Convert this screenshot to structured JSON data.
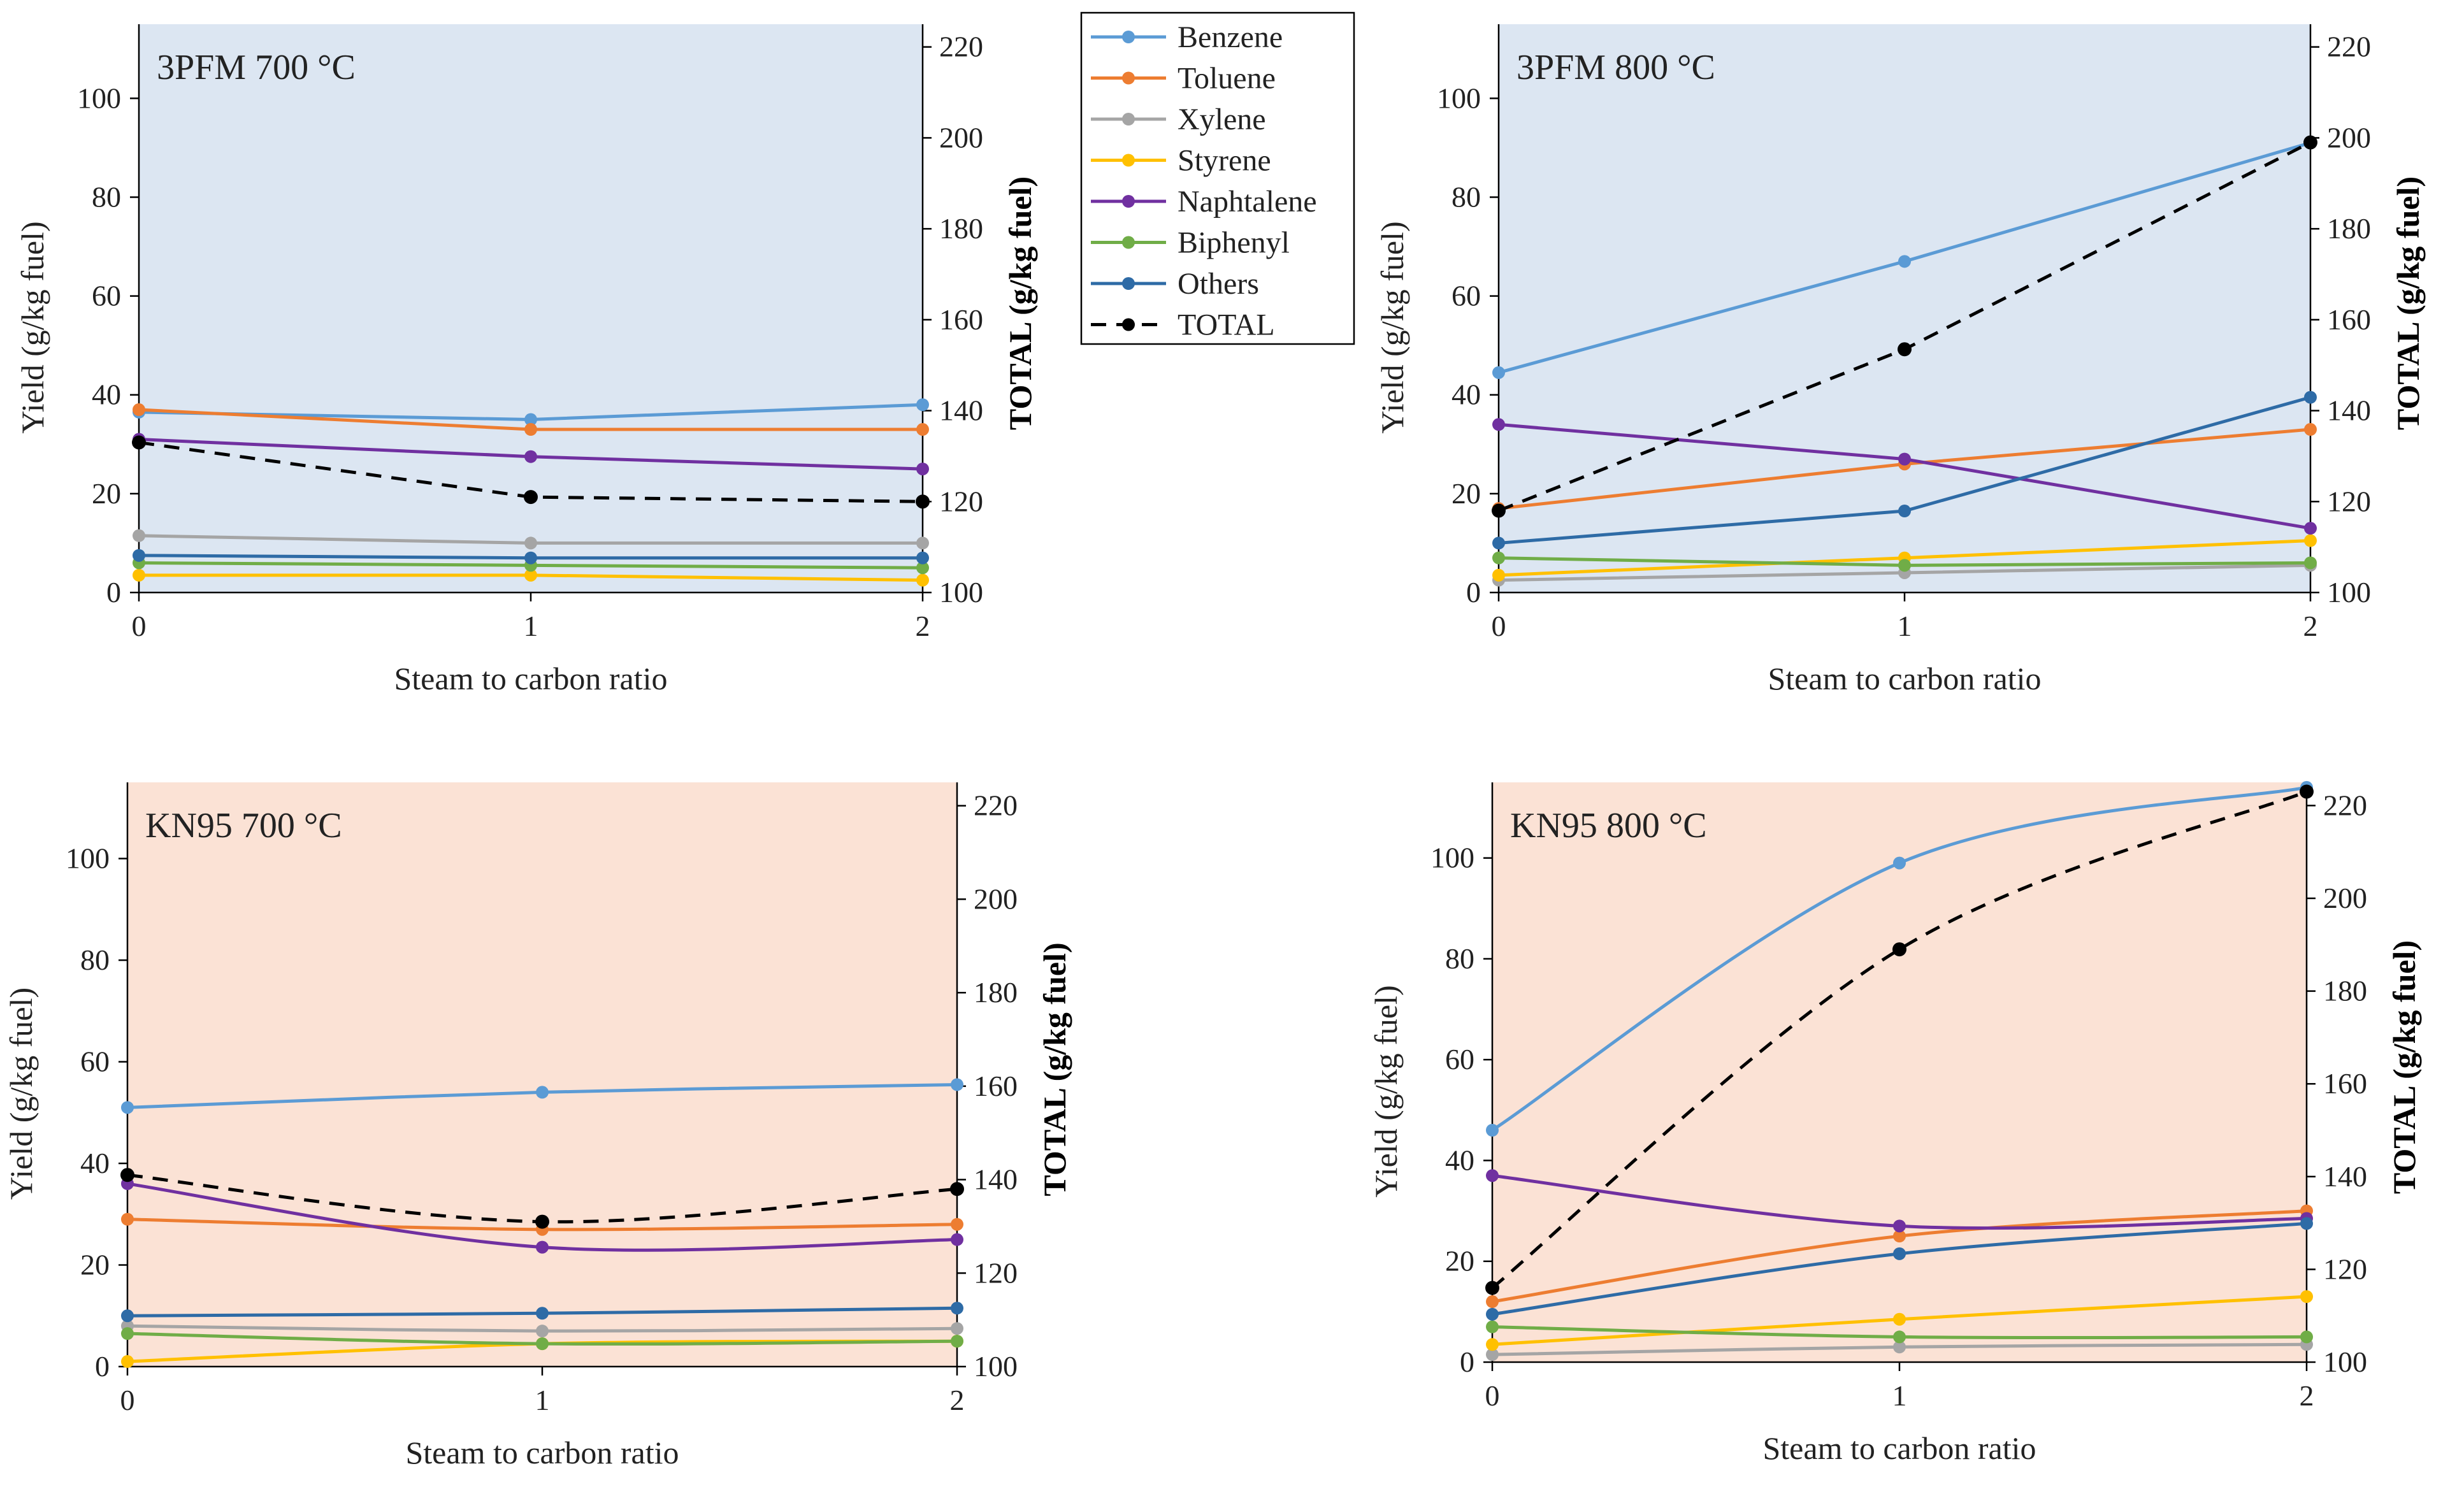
{
  "legend": {
    "entries": [
      {
        "name": "Benzene",
        "color": "#5B9BD5",
        "style": "solid"
      },
      {
        "name": "Toluene",
        "color": "#ED7D31",
        "style": "solid"
      },
      {
        "name": "Xylene",
        "color": "#A5A5A5",
        "style": "solid"
      },
      {
        "name": "Styrene",
        "color": "#FFC000",
        "style": "solid"
      },
      {
        "name": "Naphtalene",
        "color": "#7030A0",
        "style": "solid"
      },
      {
        "name": "Biphenyl",
        "color": "#70AD47",
        "style": "solid"
      },
      {
        "name": "Others",
        "color": "#2E6BA6",
        "style": "solid"
      },
      {
        "name": "TOTAL",
        "color": "#000000",
        "style": "dashed"
      }
    ]
  },
  "chart_data": [
    {
      "type": "line",
      "title": "3PFM 700 °C",
      "background": "#DCE6F2",
      "xlabel": "Steam to carbon ratio",
      "ylabel": "Yield (g/kg fuel)",
      "y2label": "TOTAL  (g/kg fuel)",
      "x": [
        0,
        1,
        2
      ],
      "x_ticks": [
        "0",
        "1",
        "2"
      ],
      "ylim": [
        0,
        115
      ],
      "y_ticks": [
        "0",
        "20",
        "40",
        "60",
        "80",
        "100"
      ],
      "y2lim": [
        100,
        225
      ],
      "y2_ticks": [
        "100",
        "120",
        "140",
        "160",
        "180",
        "200",
        "220"
      ],
      "smooth": false,
      "series": [
        {
          "name": "Benzene",
          "values": [
            36.5,
            35,
            38
          ]
        },
        {
          "name": "Toluene",
          "values": [
            37,
            33,
            33
          ]
        },
        {
          "name": "Xylene",
          "values": [
            11.5,
            10,
            10
          ]
        },
        {
          "name": "Styrene",
          "values": [
            3.5,
            3.5,
            2.5
          ]
        },
        {
          "name": "Naphtalene",
          "values": [
            31,
            27.5,
            25
          ]
        },
        {
          "name": "Biphenyl",
          "values": [
            6,
            5.5,
            5
          ]
        },
        {
          "name": "Others",
          "values": [
            7.5,
            7,
            7
          ]
        }
      ],
      "total": {
        "name": "TOTAL",
        "axis": "right",
        "values": [
          133,
          121,
          120
        ]
      }
    },
    {
      "type": "line",
      "title": "3PFM 800 °C",
      "background": "#DCE6F2",
      "xlabel": "Steam to carbon ratio",
      "ylabel": "Yield (g/kg fuel)",
      "y2label": "TOTAL  (g/kg fuel)",
      "x": [
        0,
        1,
        2
      ],
      "x_ticks": [
        "0",
        "1",
        "2"
      ],
      "ylim": [
        0,
        115
      ],
      "y_ticks": [
        "0",
        "20",
        "40",
        "60",
        "80",
        "100"
      ],
      "y2lim": [
        100,
        225
      ],
      "y2_ticks": [
        "100",
        "120",
        "140",
        "160",
        "180",
        "200",
        "220"
      ],
      "smooth": false,
      "series": [
        {
          "name": "Benzene",
          "values": [
            44.5,
            67,
            91
          ]
        },
        {
          "name": "Toluene",
          "values": [
            17,
            26,
            33
          ]
        },
        {
          "name": "Xylene",
          "values": [
            2.5,
            4,
            5.5
          ]
        },
        {
          "name": "Styrene",
          "values": [
            3.5,
            7,
            10.5
          ]
        },
        {
          "name": "Naphtalene",
          "values": [
            34,
            27,
            13
          ]
        },
        {
          "name": "Biphenyl",
          "values": [
            7,
            5.5,
            6
          ]
        },
        {
          "name": "Others",
          "values": [
            10,
            16.5,
            39.5
          ]
        }
      ],
      "total": {
        "name": "TOTAL",
        "axis": "right",
        "values": [
          118,
          153.5,
          199
        ]
      }
    },
    {
      "type": "line",
      "title": "KN95 700 °C",
      "background": "#FBE2D5",
      "xlabel": "Steam to carbon ratio",
      "ylabel": "Yield (g/kg fuel)",
      "y2label": "TOTAL  (g/kg fuel)",
      "x": [
        0,
        1,
        2
      ],
      "x_ticks": [
        "0",
        "1",
        "2"
      ],
      "ylim": [
        0,
        115
      ],
      "y_ticks": [
        "0",
        "20",
        "40",
        "60",
        "80",
        "100"
      ],
      "y2lim": [
        100,
        225
      ],
      "y2_ticks": [
        "100",
        "120",
        "140",
        "160",
        "180",
        "200",
        "220"
      ],
      "smooth": true,
      "series": [
        {
          "name": "Benzene",
          "values": [
            51,
            54,
            55.5
          ]
        },
        {
          "name": "Toluene",
          "values": [
            29,
            27,
            28
          ]
        },
        {
          "name": "Xylene",
          "values": [
            8,
            7,
            7.5
          ]
        },
        {
          "name": "Styrene",
          "values": [
            1,
            4.5,
            5
          ]
        },
        {
          "name": "Naphtalene",
          "values": [
            36,
            23.5,
            25
          ]
        },
        {
          "name": "Biphenyl",
          "values": [
            6.5,
            4.5,
            5
          ]
        },
        {
          "name": "Others",
          "values": [
            10,
            10.5,
            11.5
          ]
        }
      ],
      "total": {
        "name": "TOTAL",
        "axis": "right",
        "values": [
          141,
          131,
          138
        ]
      }
    },
    {
      "type": "line",
      "title": "KN95 800 °C",
      "background": "#FBE2D5",
      "xlabel": "Steam to carbon ratio",
      "ylabel": "Yield (g/kg fuel)",
      "y2label": "TOTAL  (g/kg fuel)",
      "x": [
        0,
        1,
        2
      ],
      "x_ticks": [
        "0",
        "1",
        "2"
      ],
      "ylim": [
        0,
        115
      ],
      "y_ticks": [
        "0",
        "20",
        "40",
        "60",
        "80",
        "100"
      ],
      "y2lim": [
        100,
        225
      ],
      "y2_ticks": [
        "100",
        "120",
        "140",
        "160",
        "180",
        "200",
        "220"
      ],
      "smooth": true,
      "series": [
        {
          "name": "Benzene",
          "values": [
            46,
            99,
            114
          ]
        },
        {
          "name": "Toluene",
          "values": [
            12,
            25,
            30
          ]
        },
        {
          "name": "Xylene",
          "values": [
            1.5,
            3,
            3.5
          ]
        },
        {
          "name": "Styrene",
          "values": [
            3.5,
            8.5,
            13
          ]
        },
        {
          "name": "Naphtalene",
          "values": [
            37,
            27,
            28.5
          ]
        },
        {
          "name": "Biphenyl",
          "values": [
            7,
            5,
            5
          ]
        },
        {
          "name": "Others",
          "values": [
            9.5,
            21.5,
            27.5
          ]
        }
      ],
      "total": {
        "name": "TOTAL",
        "axis": "right",
        "values": [
          116,
          189,
          223
        ]
      }
    }
  ]
}
